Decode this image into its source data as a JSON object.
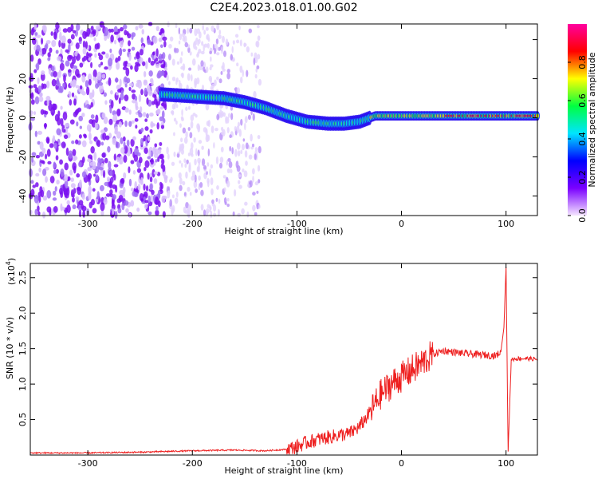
{
  "title": "C2E4.2023.018.01.00.G02",
  "chart_data": [
    {
      "type": "heatmap",
      "title": "C2E4.2023.018.01.00.G02",
      "xlabel": "Height of straight line (km)",
      "ylabel": "Frequency (Hz)",
      "xlim": [
        -355,
        130
      ],
      "ylim": [
        -50,
        48
      ],
      "xticks": [
        -300,
        -200,
        -100,
        0,
        100
      ],
      "yticks": [
        -40,
        -20,
        0,
        20,
        40
      ],
      "colorbar": {
        "label": "Normalized spectral amplitude",
        "range": [
          0.0,
          1.0
        ],
        "ticks": [
          "0.0",
          "0.2",
          "0.4",
          "0.6",
          "0.8"
        ],
        "colors": [
          "#f5e6ff",
          "#7a00ff",
          "#0000ff",
          "#00e5ff",
          "#00ff40",
          "#ffff00",
          "#ff0000",
          "#ff00a0"
        ]
      },
      "signal_ridge": [
        {
          "x": -230,
          "y": 12
        },
        {
          "x": -200,
          "y": 11
        },
        {
          "x": -170,
          "y": 10
        },
        {
          "x": -150,
          "y": 8
        },
        {
          "x": -130,
          "y": 5
        },
        {
          "x": -110,
          "y": 1
        },
        {
          "x": -90,
          "y": -2
        },
        {
          "x": -70,
          "y": -3
        },
        {
          "x": -55,
          "y": -3
        },
        {
          "x": -40,
          "y": -2
        },
        {
          "x": -25,
          "y": 1
        },
        {
          "x": 0,
          "y": 1
        },
        {
          "x": 50,
          "y": 1
        },
        {
          "x": 100,
          "y": 1
        },
        {
          "x": 130,
          "y": 1
        }
      ]
    },
    {
      "type": "line",
      "xlabel": "Height of straight line (km)",
      "ylabel": "SNR (10 * v/v)",
      "yscale_label": "(x10",
      "yscale_exp": "4",
      "ylabel_exp_suffix": ")",
      "xlim": [
        -355,
        130
      ],
      "ylim": [
        0,
        2.7
      ],
      "xticks": [
        -300,
        -200,
        -100,
        0,
        100
      ],
      "yticks": [
        "0.5",
        "1.0",
        "1.5",
        "2.0",
        "2.5"
      ],
      "series": [
        {
          "color": "#ee2020",
          "x": [
            -355,
            -300,
            -250,
            -200,
            -160,
            -130,
            -110,
            -100,
            -90,
            -80,
            -70,
            -60,
            -50,
            -40,
            -30,
            -20,
            -10,
            0,
            10,
            20,
            30,
            40,
            50,
            60,
            70,
            80,
            90,
            95,
            98,
            100,
            102,
            105,
            110,
            120,
            130
          ],
          "y": [
            0.03,
            0.03,
            0.04,
            0.06,
            0.07,
            0.06,
            0.08,
            0.12,
            0.18,
            0.22,
            0.25,
            0.28,
            0.3,
            0.4,
            0.6,
            0.85,
            1.0,
            1.1,
            1.2,
            1.3,
            1.42,
            1.47,
            1.45,
            1.43,
            1.42,
            1.41,
            1.4,
            1.45,
            1.8,
            2.65,
            0.05,
            1.35,
            1.36,
            1.36,
            1.35
          ]
        }
      ]
    }
  ]
}
